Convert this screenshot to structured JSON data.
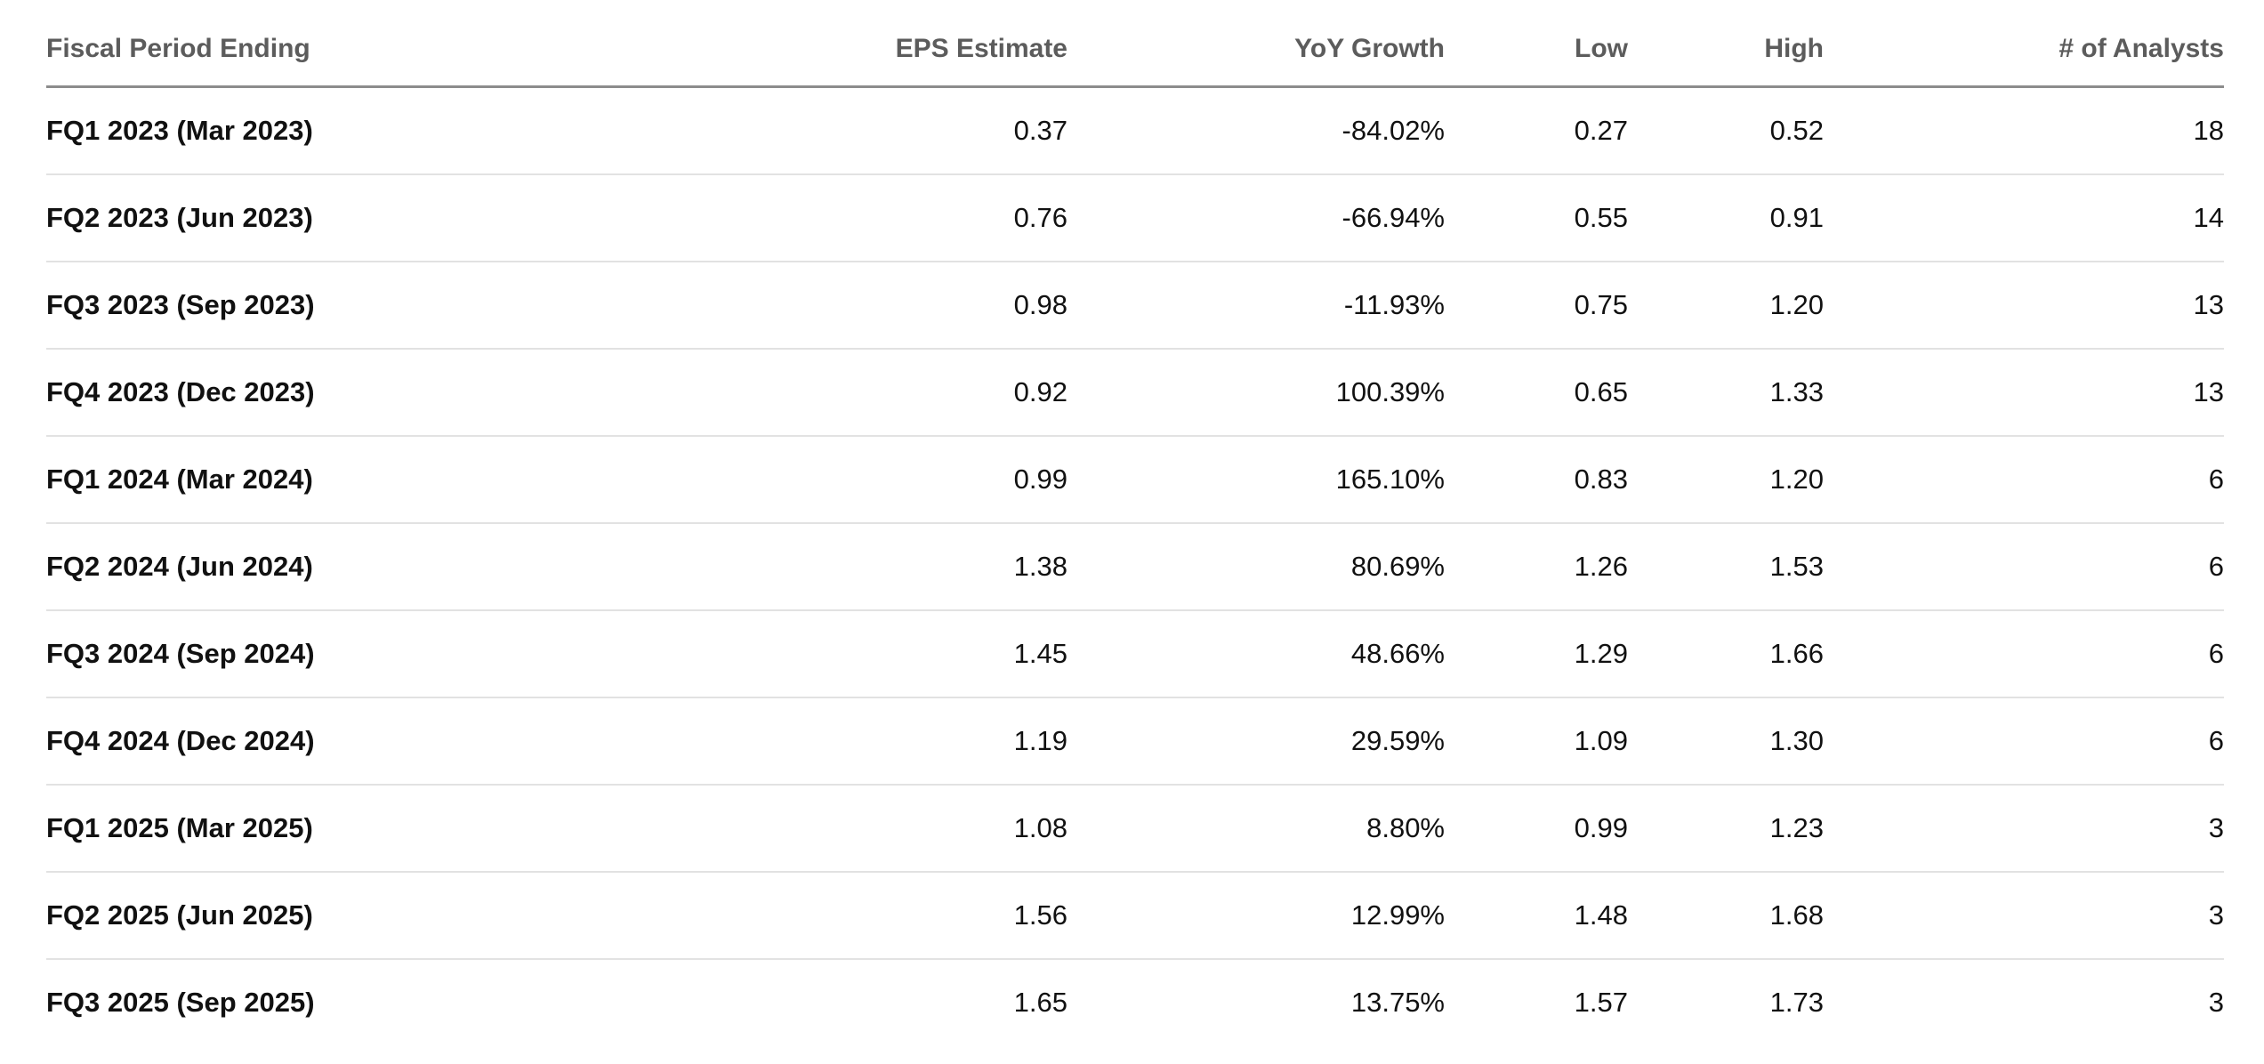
{
  "table": {
    "headers": {
      "period": "Fiscal Period Ending",
      "eps": "EPS Estimate",
      "yoy": "YoY Growth",
      "low": "Low",
      "high": "High",
      "analysts": "# of Analysts"
    },
    "rows": [
      {
        "period": "FQ1 2023 (Mar 2023)",
        "eps": "0.37",
        "yoy": "-84.02%",
        "low": "0.27",
        "high": "0.52",
        "analysts": "18"
      },
      {
        "period": "FQ2 2023 (Jun 2023)",
        "eps": "0.76",
        "yoy": "-66.94%",
        "low": "0.55",
        "high": "0.91",
        "analysts": "14"
      },
      {
        "period": "FQ3 2023 (Sep 2023)",
        "eps": "0.98",
        "yoy": "-11.93%",
        "low": "0.75",
        "high": "1.20",
        "analysts": "13"
      },
      {
        "period": "FQ4 2023 (Dec 2023)",
        "eps": "0.92",
        "yoy": "100.39%",
        "low": "0.65",
        "high": "1.33",
        "analysts": "13"
      },
      {
        "period": "FQ1 2024 (Mar 2024)",
        "eps": "0.99",
        "yoy": "165.10%",
        "low": "0.83",
        "high": "1.20",
        "analysts": "6"
      },
      {
        "period": "FQ2 2024 (Jun 2024)",
        "eps": "1.38",
        "yoy": "80.69%",
        "low": "1.26",
        "high": "1.53",
        "analysts": "6"
      },
      {
        "period": "FQ3 2024 (Sep 2024)",
        "eps": "1.45",
        "yoy": "48.66%",
        "low": "1.29",
        "high": "1.66",
        "analysts": "6"
      },
      {
        "period": "FQ4 2024 (Dec 2024)",
        "eps": "1.19",
        "yoy": "29.59%",
        "low": "1.09",
        "high": "1.30",
        "analysts": "6"
      },
      {
        "period": "FQ1 2025 (Mar 2025)",
        "eps": "1.08",
        "yoy": "8.80%",
        "low": "0.99",
        "high": "1.23",
        "analysts": "3"
      },
      {
        "period": "FQ2 2025 (Jun 2025)",
        "eps": "1.56",
        "yoy": "12.99%",
        "low": "1.48",
        "high": "1.68",
        "analysts": "3"
      },
      {
        "period": "FQ3 2025 (Sep 2025)",
        "eps": "1.65",
        "yoy": "13.75%",
        "low": "1.57",
        "high": "1.73",
        "analysts": "3"
      }
    ]
  },
  "colors": {
    "header_text": "#5c5c5c",
    "body_text": "#111111",
    "header_rule": "#8c8c8c",
    "row_rule": "#e2e2e2"
  }
}
